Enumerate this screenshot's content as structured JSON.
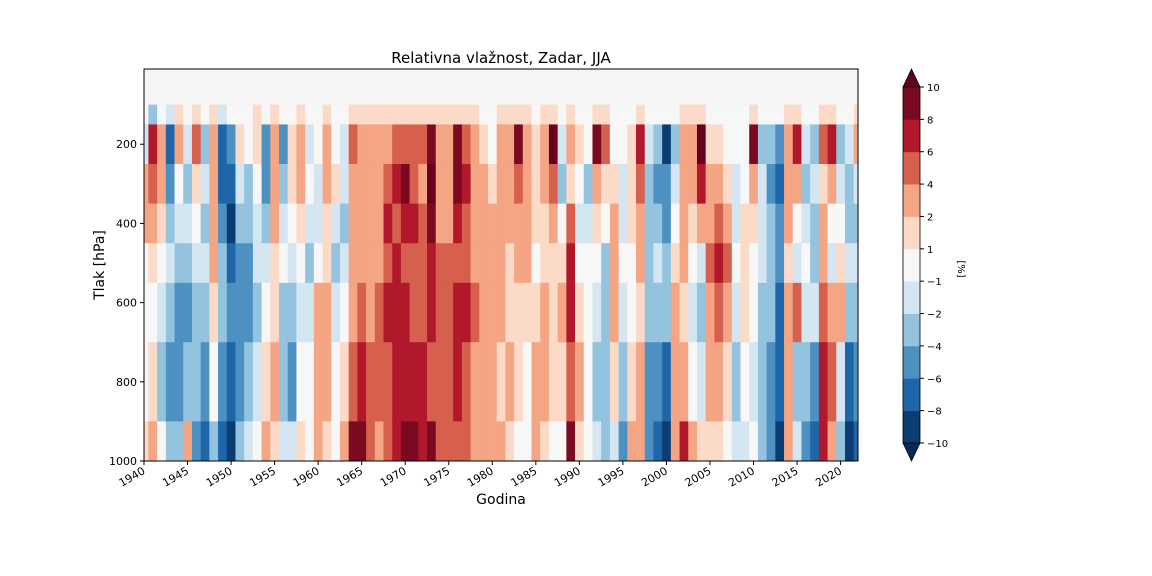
{
  "chart_data": {
    "type": "heatmap",
    "title": "Relativna vlažnost, Zadar, JJA",
    "xlabel": "Godina",
    "ylabel": "Tlak [hPa]",
    "xlim": [
      1940,
      2022
    ],
    "ylim": [
      1000,
      10
    ],
    "x_ticks": [
      1940,
      1945,
      1950,
      1955,
      1960,
      1965,
      1970,
      1975,
      1980,
      1985,
      1990,
      1995,
      2000,
      2005,
      2010,
      2015,
      2020
    ],
    "y_ticks": [
      200,
      400,
      600,
      800,
      1000
    ],
    "levels": [
      -10,
      -8,
      -6,
      -4,
      -2,
      -1,
      1,
      2,
      4,
      6,
      8,
      10
    ],
    "colors": [
      "#0b3c73",
      "#1f66a8",
      "#4d91c2",
      "#93c3de",
      "#d3e6f1",
      "#f7f7f7",
      "#fbdac8",
      "#f4a583",
      "#d6604d",
      "#b2182b",
      "#7a0a21"
    ],
    "extend_colors": {
      "under": "#062a55",
      "over": "#67001f"
    },
    "colorbar_label": "[%]",
    "no_data_above_hpa": 100,
    "series": [
      {
        "x": 1940,
        "values": [
          -1,
          -2,
          3,
          2,
          0,
          -1,
          0,
          1
        ]
      },
      {
        "x": 1941,
        "values": [
          -3,
          7,
          5,
          3,
          1,
          0,
          1,
          2
        ]
      },
      {
        "x": 1942,
        "values": [
          -1,
          3,
          2,
          1,
          -1,
          -2,
          -3,
          -1
        ]
      },
      {
        "x": 1943,
        "values": [
          -2,
          -7,
          -5,
          -3,
          -2,
          -4,
          -6,
          -4
        ]
      },
      {
        "x": 1944,
        "values": [
          1,
          2,
          -1,
          -2,
          -4,
          -6,
          -5,
          -4
        ]
      },
      {
        "x": 1945,
        "values": [
          0,
          -2,
          -3,
          -2,
          -3,
          -5,
          -4,
          3
        ]
      },
      {
        "x": 1946,
        "values": [
          1,
          4,
          1,
          -1,
          -2,
          -3,
          -4,
          -5
        ]
      },
      {
        "x": 1947,
        "values": [
          0,
          -3,
          -2,
          -3,
          -2,
          -3,
          -5,
          -7
        ]
      },
      {
        "x": 1948,
        "values": [
          1,
          3,
          2,
          3,
          2,
          1,
          -1,
          -3
        ]
      },
      {
        "x": 1949,
        "values": [
          -2,
          -8,
          -7,
          -5,
          -3,
          -4,
          -6,
          -8
        ]
      },
      {
        "x": 1950,
        "values": [
          -1,
          -6,
          -8,
          -9,
          -7,
          -6,
          -7,
          -9
        ]
      },
      {
        "x": 1951,
        "values": [
          0,
          1,
          -2,
          -3,
          -5,
          -6,
          -5,
          -4
        ]
      },
      {
        "x": 1952,
        "values": [
          0,
          -1,
          -3,
          -4,
          -5,
          -5,
          -3,
          -2
        ]
      },
      {
        "x": 1953,
        "values": [
          1,
          1,
          -1,
          -2,
          -2,
          -3,
          -2,
          -1
        ]
      },
      {
        "x": 1954,
        "values": [
          -1,
          -6,
          -5,
          -3,
          -2,
          -1,
          1,
          2
        ]
      },
      {
        "x": 1955,
        "values": [
          1,
          3,
          3,
          2,
          1,
          1,
          2,
          1
        ]
      },
      {
        "x": 1956,
        "values": [
          -1,
          -5,
          -3,
          -2,
          -1,
          -3,
          -4,
          -2
        ]
      },
      {
        "x": 1957,
        "values": [
          0,
          1,
          1,
          -1,
          -2,
          -4,
          -5,
          -2
        ]
      },
      {
        "x": 1958,
        "values": [
          1,
          3,
          2,
          1,
          -1,
          -2,
          -1,
          1
        ]
      },
      {
        "x": 1959,
        "values": [
          0,
          -2,
          -1,
          -2,
          -3,
          -2,
          -1,
          -1
        ]
      },
      {
        "x": 1960,
        "values": [
          0,
          -1,
          -2,
          -2,
          -1,
          2,
          3,
          2
        ]
      },
      {
        "x": 1961,
        "values": [
          1,
          3,
          2,
          1,
          1,
          3,
          2,
          1
        ]
      },
      {
        "x": 1962,
        "values": [
          0,
          -1,
          1,
          -2,
          -3,
          -2,
          -1,
          0
        ]
      },
      {
        "x": 1963,
        "values": [
          0,
          -2,
          -2,
          -3,
          -2,
          -1,
          1,
          3
        ]
      },
      {
        "x": 1964,
        "values": [
          1,
          5,
          3,
          2,
          2,
          3,
          5,
          8
        ]
      },
      {
        "x": 1965,
        "values": [
          1,
          3,
          2,
          2,
          2,
          4,
          6,
          9
        ]
      },
      {
        "x": 1966,
        "values": [
          1,
          2,
          3,
          2,
          2,
          3,
          4,
          5
        ]
      },
      {
        "x": 1967,
        "values": [
          1,
          2,
          3,
          3,
          3,
          4,
          4,
          3
        ]
      },
      {
        "x": 1968,
        "values": [
          1,
          3,
          5,
          6,
          5,
          6,
          5,
          4
        ]
      },
      {
        "x": 1969,
        "values": [
          1,
          4,
          6,
          5,
          6,
          7,
          6,
          7
        ]
      },
      {
        "x": 1970,
        "values": [
          1,
          5,
          9,
          6,
          5,
          6,
          7,
          8
        ]
      },
      {
        "x": 1971,
        "values": [
          1,
          4,
          5,
          6,
          4,
          5,
          6,
          9
        ]
      },
      {
        "x": 1972,
        "values": [
          1,
          5,
          3,
          4,
          5,
          5,
          6,
          7
        ]
      },
      {
        "x": 1973,
        "values": [
          1,
          9,
          10,
          9,
          7,
          6,
          5,
          9
        ]
      },
      {
        "x": 1974,
        "values": [
          1,
          3,
          2,
          3,
          4,
          4,
          4,
          5
        ]
      },
      {
        "x": 1975,
        "values": [
          1,
          2,
          3,
          3,
          4,
          5,
          5,
          5
        ]
      },
      {
        "x": 1976,
        "values": [
          1,
          8,
          9,
          6,
          5,
          7,
          7,
          5
        ]
      },
      {
        "x": 1977,
        "values": [
          1,
          5,
          6,
          4,
          4,
          6,
          5,
          4
        ]
      },
      {
        "x": 1978,
        "values": [
          1,
          2,
          2,
          2,
          3,
          4,
          3,
          2
        ]
      },
      {
        "x": 1979,
        "values": [
          0,
          1,
          2,
          2,
          2,
          3,
          2,
          3
        ]
      },
      {
        "x": 1980,
        "values": [
          0,
          -1,
          1,
          2,
          2,
          2,
          2,
          3
        ]
      },
      {
        "x": 1981,
        "values": [
          1,
          2,
          2,
          3,
          2,
          2,
          1,
          2
        ]
      },
      {
        "x": 1982,
        "values": [
          1,
          3,
          2,
          2,
          1,
          1,
          2,
          1
        ]
      },
      {
        "x": 1983,
        "values": [
          1,
          8,
          4,
          3,
          2,
          1,
          1,
          -1
        ]
      },
      {
        "x": 1984,
        "values": [
          1,
          3,
          2,
          3,
          3,
          1,
          0,
          -1
        ]
      },
      {
        "x": 1985,
        "values": [
          0,
          1,
          1,
          1,
          -1,
          1,
          2,
          3
        ]
      },
      {
        "x": 1986,
        "values": [
          1,
          3,
          2,
          1,
          1,
          2,
          2,
          1
        ]
      },
      {
        "x": 1987,
        "values": [
          1,
          10,
          4,
          2,
          1,
          1,
          1,
          0
        ]
      },
      {
        "x": 1988,
        "values": [
          0,
          -2,
          -3,
          -1,
          1,
          2,
          1,
          0
        ]
      },
      {
        "x": 1989,
        "values": [
          1,
          2,
          1,
          5,
          6,
          7,
          5,
          8
        ]
      },
      {
        "x": 1990,
        "values": [
          0,
          1,
          -1,
          -2,
          -1,
          1,
          2,
          1
        ]
      },
      {
        "x": 1991,
        "values": [
          0,
          -1,
          -3,
          -2,
          -1,
          0,
          -1,
          -1
        ]
      },
      {
        "x": 1992,
        "values": [
          1,
          9,
          3,
          1,
          -1,
          -2,
          -3,
          -2
        ]
      },
      {
        "x": 1993,
        "values": [
          1,
          4,
          1,
          -1,
          -3,
          -4,
          -3,
          -4
        ]
      },
      {
        "x": 1994,
        "values": [
          0,
          -1,
          1,
          2,
          3,
          2,
          1,
          -2
        ]
      },
      {
        "x": 1995,
        "values": [
          0,
          -1,
          -2,
          -2,
          -1,
          -2,
          -4,
          -6
        ]
      },
      {
        "x": 1996,
        "values": [
          0,
          1,
          1,
          1,
          -1,
          0,
          1,
          2
        ]
      },
      {
        "x": 1997,
        "values": [
          1,
          7,
          5,
          3,
          2,
          1,
          2,
          3
        ]
      },
      {
        "x": 1998,
        "values": [
          0,
          -2,
          -4,
          -4,
          -3,
          -4,
          -5,
          -6
        ]
      },
      {
        "x": 1999,
        "values": [
          0,
          -4,
          -5,
          -3,
          -2,
          -4,
          -6,
          -8
        ]
      },
      {
        "x": 2000,
        "values": [
          0,
          -9,
          -6,
          -5,
          -4,
          -3,
          -7,
          -9
        ]
      },
      {
        "x": 2001,
        "values": [
          0,
          -3,
          -2,
          -1,
          1,
          2,
          3,
          2
        ]
      },
      {
        "x": 2002,
        "values": [
          1,
          2,
          2,
          3,
          2,
          1,
          2,
          6
        ]
      },
      {
        "x": 2003,
        "values": [
          1,
          3,
          2,
          1,
          -1,
          -2,
          -1,
          2
        ]
      },
      {
        "x": 2004,
        "values": [
          1,
          10,
          6,
          2,
          -2,
          -3,
          -2,
          1
        ]
      },
      {
        "x": 2005,
        "values": [
          0,
          1,
          2,
          3,
          4,
          3,
          2,
          1
        ]
      },
      {
        "x": 2006,
        "values": [
          0,
          1,
          2,
          5,
          7,
          5,
          2,
          1
        ]
      },
      {
        "x": 2007,
        "values": [
          0,
          -1,
          1,
          2,
          4,
          3,
          1,
          -1
        ]
      },
      {
        "x": 2008,
        "values": [
          0,
          -1,
          -2,
          -2,
          -1,
          -2,
          -3,
          -2
        ]
      },
      {
        "x": 2009,
        "values": [
          0,
          -1,
          -1,
          1,
          1,
          1,
          -1,
          -2
        ]
      },
      {
        "x": 2010,
        "values": [
          1,
          8,
          2,
          1,
          0,
          -1,
          -2,
          -1
        ]
      },
      {
        "x": 2011,
        "values": [
          0,
          -3,
          -2,
          -2,
          -2,
          -3,
          -3,
          -4
        ]
      },
      {
        "x": 2012,
        "values": [
          0,
          -4,
          -5,
          -4,
          -3,
          -4,
          -5,
          -6
        ]
      },
      {
        "x": 2013,
        "values": [
          0,
          -6,
          -8,
          -6,
          -5,
          -7,
          -8,
          -9
        ]
      },
      {
        "x": 2014,
        "values": [
          1,
          2,
          3,
          2,
          1,
          2,
          3,
          2
        ]
      },
      {
        "x": 2015,
        "values": [
          1,
          6,
          3,
          -1,
          -2,
          4,
          -3,
          -2
        ]
      },
      {
        "x": 2016,
        "values": [
          0,
          -2,
          -3,
          -2,
          -1,
          -2,
          -4,
          -6
        ]
      },
      {
        "x": 2017,
        "values": [
          0,
          -3,
          -2,
          -4,
          -3,
          -2,
          -6,
          -8
        ]
      },
      {
        "x": 2018,
        "values": [
          1,
          4,
          1,
          2,
          3,
          5,
          6,
          7
        ]
      },
      {
        "x": 2019,
        "values": [
          1,
          7,
          2,
          -1,
          -2,
          2,
          4,
          3
        ]
      },
      {
        "x": 2020,
        "values": [
          0,
          -3,
          -2,
          -1,
          1,
          3,
          -2,
          -4
        ]
      },
      {
        "x": 2021,
        "values": [
          0,
          -2,
          -4,
          -3,
          -2,
          -4,
          -7,
          -9
        ]
      },
      {
        "x": 2022,
        "values": [
          1,
          3,
          -2,
          -3,
          -2,
          -3,
          -5,
          -8
        ]
      }
    ],
    "pressure_levels": [
      100,
      200,
      300,
      400,
      500,
      600,
      800,
      1000
    ]
  }
}
